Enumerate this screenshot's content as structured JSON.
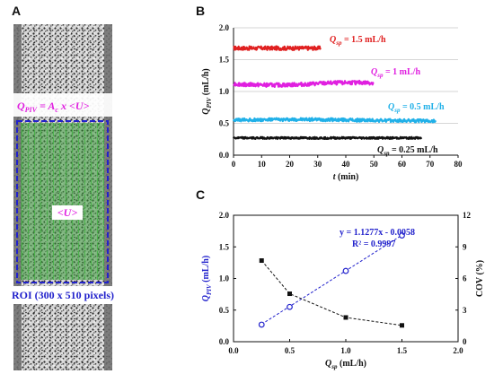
{
  "panels": {
    "a": "A",
    "b": "B",
    "c": "C"
  },
  "image_panel": {
    "formula": "Q_PIV = A_c x <U>",
    "formula_parts": {
      "q": "Q",
      "q_sub": "PIV",
      "mid": " = A",
      "a_sub": "c",
      "tail": " x <U>"
    },
    "velocity_label": "<U>",
    "roi_label": "ROI (300 x 510 pixels)",
    "colors": {
      "formula": "#e020e0",
      "roi": "#2222cc",
      "piv_overlay": "#3a9a3a"
    }
  },
  "chart_data": [
    {
      "id": "B",
      "type": "line",
      "xlabel": "t (min)",
      "ylabel": "Q_PIV (mL/h)",
      "xlim": [
        0,
        80
      ],
      "ylim": [
        0,
        2.0
      ],
      "xticks": [
        "0",
        "10",
        "20",
        "30",
        "40",
        "50",
        "60",
        "70",
        "80"
      ],
      "yticks": [
        "0.0",
        "0.5",
        "1.0",
        "1.5",
        "2.0"
      ],
      "grid": "horizontal",
      "series": [
        {
          "label": "Q_sp = 1.5 mL/h",
          "label_parts": {
            "q": "Q",
            "sub": "sp",
            "rest": " = 1.5 mL/h"
          },
          "color": "#e02020",
          "t_start": 0,
          "t_end": 31,
          "mean": 1.68,
          "noise": 0.03
        },
        {
          "label": "Q_sp = 1 mL/h",
          "label_parts": {
            "q": "Q",
            "sub": "sp",
            "rest": " = 1 mL/h"
          },
          "color": "#e020e0",
          "t_start": 0,
          "t_end": 50,
          "mean": 1.12,
          "noise": 0.03
        },
        {
          "label": "Q_sp = 0.5 mL/h",
          "label_parts": {
            "q": "Q",
            "sub": "sp",
            "rest": " = 0.5 mL/h"
          },
          "color": "#20b0e8",
          "t_start": 0,
          "t_end": 72,
          "mean": 0.55,
          "noise": 0.025
        },
        {
          "label": "Q_sp = 0.25 mL/h",
          "label_parts": {
            "q": "Q",
            "sub": "sp",
            "rest": " = 0.25 mL/h"
          },
          "color": "#111111",
          "t_start": 0,
          "t_end": 67,
          "mean": 0.27,
          "noise": 0.015
        }
      ]
    },
    {
      "id": "C",
      "type": "scatter",
      "xlabel": "Q_sp (mL/h)",
      "ylabel": "Q_PIV (mL/h)",
      "y2label": "COV (%)",
      "xlim": [
        0,
        2.0
      ],
      "ylim": [
        0,
        2.0
      ],
      "y2lim": [
        0,
        12
      ],
      "xticks": [
        "0.0",
        "0.5",
        "1.0",
        "1.5",
        "2.0"
      ],
      "yticks": [
        "0.0",
        "0.5",
        "1.0",
        "1.5",
        "2.0"
      ],
      "y2ticks": [
        "0",
        "3",
        "6",
        "9",
        "12"
      ],
      "series": [
        {
          "name": "Q_PIV",
          "axis": "left",
          "marker": "open-circle",
          "color": "#2222cc",
          "x": [
            0.25,
            0.5,
            1.0,
            1.5
          ],
          "y": [
            0.27,
            0.55,
            1.12,
            1.68
          ]
        },
        {
          "name": "COV",
          "axis": "right",
          "marker": "filled-square",
          "color": "#111111",
          "x": [
            0.25,
            0.5,
            1.0,
            1.5
          ],
          "y": [
            7.7,
            4.55,
            2.3,
            1.55
          ]
        }
      ],
      "annotation": {
        "equation": "y = 1.1277x - 0.0058",
        "r2": "R² = 0.9997"
      }
    }
  ]
}
